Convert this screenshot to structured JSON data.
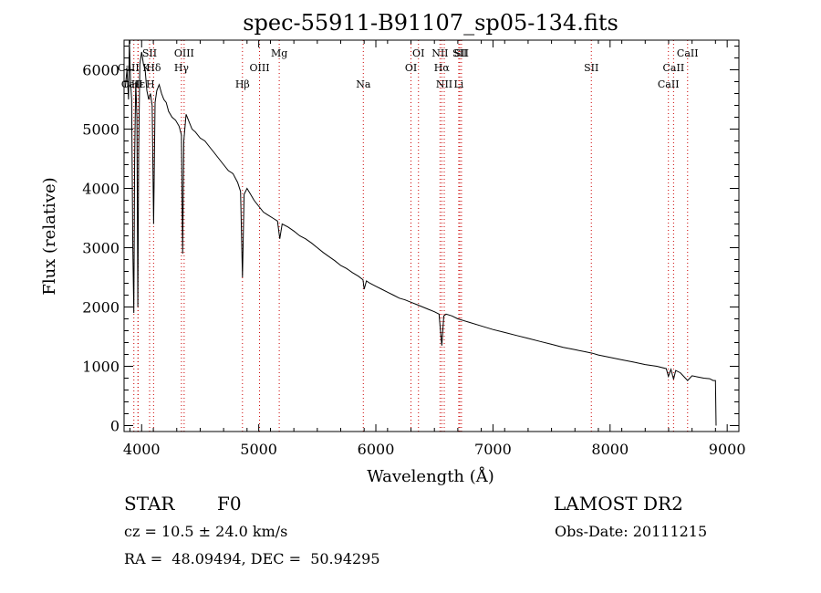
{
  "chart_data": {
    "type": "line",
    "title": "spec-55911-B91107_sp05-134.fits",
    "xlabel": "Wavelength (Å)",
    "ylabel": "Flux (relative)",
    "xlim": [
      3850,
      9100
    ],
    "ylim": [
      -100,
      6500
    ],
    "x_ticks": [
      4000,
      5000,
      6000,
      7000,
      8000,
      9000
    ],
    "y_ticks": [
      0,
      1000,
      2000,
      3000,
      4000,
      5000,
      6000
    ],
    "grid": false,
    "series": [
      {
        "x": [
          3860,
          3875,
          3888,
          3895,
          3905,
          3915,
          3925,
          3933,
          3940,
          3950,
          3960,
          3968,
          3975,
          3985,
          4000,
          4015,
          4030,
          4045,
          4060,
          4075,
          4090,
          4102,
          4115,
          4130,
          4150,
          4170,
          4190,
          4210,
          4230,
          4260,
          4290,
          4320,
          4340,
          4350,
          4360,
          4380,
          4400,
          4430,
          4460,
          4500,
          4540,
          4580,
          4620,
          4660,
          4700,
          4740,
          4780,
          4820,
          4845,
          4861,
          4875,
          4900,
          4930,
          4960,
          5000,
          5040,
          5080,
          5120,
          5160,
          5180,
          5200,
          5250,
          5300,
          5350,
          5400,
          5450,
          5500,
          5550,
          5600,
          5650,
          5700,
          5750,
          5800,
          5850,
          5890,
          5900,
          5920,
          5950,
          6000,
          6050,
          6100,
          6150,
          6200,
          6250,
          6300,
          6350,
          6400,
          6450,
          6500,
          6540,
          6563,
          6580,
          6600,
          6650,
          6700,
          6800,
          6900,
          7000,
          7100,
          7200,
          7300,
          7400,
          7500,
          7600,
          7700,
          7800,
          7850,
          7900,
          8000,
          8100,
          8200,
          8300,
          8400,
          8480,
          8498,
          8520,
          8542,
          8560,
          8600,
          8662,
          8700,
          8750,
          8800,
          8850,
          8880,
          8900,
          8905
        ],
        "values": [
          5700,
          6000,
          5500,
          6500,
          5800,
          5500,
          3000,
          1900,
          4500,
          5800,
          5200,
          2000,
          4600,
          6100,
          6300,
          6100,
          6000,
          5650,
          5500,
          5600,
          5400,
          3400,
          5450,
          5650,
          5750,
          5600,
          5500,
          5450,
          5300,
          5200,
          5150,
          5050,
          4900,
          2900,
          4800,
          5250,
          5150,
          5000,
          4950,
          4850,
          4800,
          4700,
          4600,
          4500,
          4400,
          4300,
          4250,
          4100,
          3950,
          2500,
          3900,
          4000,
          3900,
          3800,
          3700,
          3600,
          3550,
          3500,
          3450,
          3150,
          3400,
          3350,
          3280,
          3200,
          3150,
          3080,
          3000,
          2920,
          2850,
          2780,
          2700,
          2650,
          2580,
          2520,
          2460,
          2300,
          2440,
          2400,
          2350,
          2300,
          2250,
          2200,
          2150,
          2120,
          2080,
          2040,
          2000,
          1960,
          1920,
          1880,
          1350,
          1850,
          1880,
          1850,
          1800,
          1740,
          1680,
          1620,
          1570,
          1520,
          1470,
          1420,
          1370,
          1320,
          1280,
          1240,
          1220,
          1190,
          1150,
          1110,
          1070,
          1030,
          1000,
          960,
          830,
          950,
          780,
          930,
          890,
          760,
          840,
          820,
          800,
          790,
          760,
          760,
          0
        ]
      }
    ],
    "lines": [
      {
        "label": "CaII K",
        "wavelength": 3933.7
      },
      {
        "label": "CaII H",
        "wavelength": 3968.5
      },
      {
        "label": "Hε",
        "wavelength": 3970
      },
      {
        "label": "SII",
        "wavelength": 4068
      },
      {
        "label": "Hδ",
        "wavelength": 4102
      },
      {
        "label": "OIII",
        "wavelength": 4363
      },
      {
        "label": "Hγ",
        "wavelength": 4340
      },
      {
        "label": "Hβ",
        "wavelength": 4861
      },
      {
        "label": "OIII",
        "wavelength": 5007
      },
      {
        "label": "Mg",
        "wavelength": 5175
      },
      {
        "label": "Na",
        "wavelength": 5893
      },
      {
        "label": "OI",
        "wavelength": 6300
      },
      {
        "label": "OI",
        "wavelength": 6364
      },
      {
        "label": "NII",
        "wavelength": 6548
      },
      {
        "label": "Hα",
        "wavelength": 6563
      },
      {
        "label": "NII",
        "wavelength": 6584
      },
      {
        "label": "SII",
        "wavelength": 6717
      },
      {
        "label": "Li",
        "wavelength": 6708
      },
      {
        "label": "SII",
        "wavelength": 6731
      },
      {
        "label": "SII",
        "wavelength": 7840
      },
      {
        "label": "CaII",
        "wavelength": 8498
      },
      {
        "label": "CaII",
        "wavelength": 8542
      },
      {
        "label": "CaII",
        "wavelength": 8662
      }
    ],
    "line_color": "#000000",
    "marker_color": "#cc0000"
  },
  "info": {
    "object_class": "STAR",
    "subclass": "F0",
    "survey": "LAMOST DR2",
    "redshift_text": "cz = 10.5 ± 24.0 km/s",
    "obs_date_text": "Obs-Date: 20111215",
    "coords_text": "RA =  48.09494, DEC =  50.94295"
  }
}
